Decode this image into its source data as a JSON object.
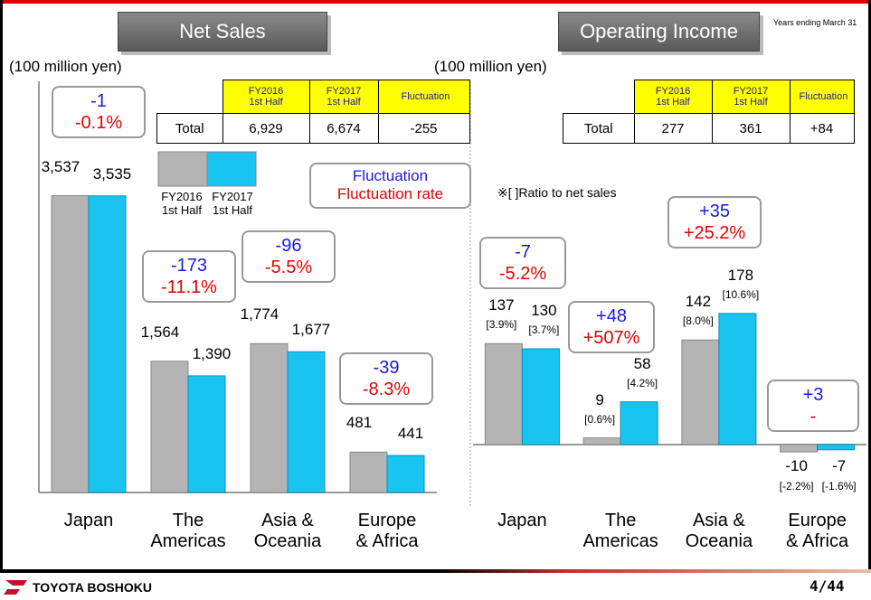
{
  "header": {
    "note": "Years ending March 31"
  },
  "chart_data": [
    {
      "type": "bar",
      "title": "Net Sales",
      "y_label": "(100 million yen)",
      "categories": [
        "Japan",
        "The\nAmericas",
        "Asia &\nOceania",
        "Europe\n& Africa"
      ],
      "series": [
        {
          "name": "FY2016 1st Half",
          "color": "#b4b4b4",
          "values": [
            3537,
            1564,
            1774,
            481
          ],
          "value_labels": [
            "3,537",
            "1,564",
            "1,774",
            "481"
          ]
        },
        {
          "name": "FY2017 1st Half",
          "color": "#1ac4f0",
          "values": [
            3535,
            1390,
            1677,
            441
          ],
          "value_labels": [
            "3,535",
            "1,390",
            "1,677",
            "441"
          ]
        }
      ],
      "ylim": [
        0,
        4900
      ],
      "fluctuation": {
        "values": [
          -1,
          -173,
          -96,
          -39
        ]
      },
      "fluctuation_rate": {
        "values": [
          -0.1,
          -11.1,
          -5.5,
          -8.3
        ],
        "value_labels": [
          "-0.1%",
          "-11.1%",
          "-5.5%",
          "-8.3%"
        ]
      },
      "legend_box": [
        "Fluctuation",
        "Fluctuation rate"
      ],
      "table": {
        "columns": [
          "FY2016 1st Half",
          "FY2017 1st Half",
          "Fluctuation"
        ],
        "rows": [
          [
            "Total",
            "6,929",
            "6,674",
            "-255"
          ]
        ]
      }
    },
    {
      "type": "bar",
      "title": "Operating Income",
      "y_label": "(100 million yen)",
      "categories": [
        "Japan",
        "The\nAmericas",
        "Asia &\nOceania",
        "Europe\n& Africa"
      ],
      "note": "※[ ]Ratio to net sales",
      "series": [
        {
          "name": "FY2016 1st Half",
          "color": "#b4b4b4",
          "values": [
            137,
            9,
            142,
            -10
          ],
          "ratio_labels": [
            "[3.9%]",
            "[0.6%]",
            "[8.0%]",
            "[-2.2%]"
          ]
        },
        {
          "name": "FY2017 1st Half",
          "color": "#1ac4f0",
          "values": [
            130,
            58,
            178,
            -7
          ],
          "ratio_labels": [
            "[3.7%]",
            "[4.2%]",
            "[10.6%]",
            "[-1.6%]"
          ]
        }
      ],
      "ylim": [
        -65,
        493
      ],
      "fluctuation": {
        "values": [
          -7,
          48,
          35,
          3
        ],
        "value_labels": [
          "-7",
          "+48",
          "+35",
          "+3"
        ]
      },
      "fluctuation_rate": {
        "values": [
          -5.2,
          507,
          25.2,
          null
        ],
        "value_labels": [
          "-5.2%",
          "+507%",
          "+25.2%",
          "-"
        ]
      },
      "table": {
        "columns": [
          "FY2016 1st Half",
          "FY2017 1st Half",
          "Fluctuation"
        ],
        "rows": [
          [
            "Total",
            "277",
            "361",
            "+84"
          ]
        ]
      }
    }
  ],
  "footer": {
    "company": "TOYOTA BOSHOKU",
    "page": "4/44"
  }
}
